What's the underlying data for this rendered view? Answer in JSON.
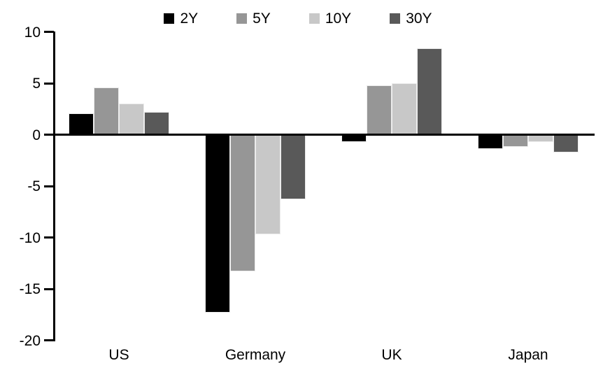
{
  "chart_data": {
    "type": "bar",
    "categories": [
      "US",
      "Germany",
      "UK",
      "Japan"
    ],
    "series": [
      {
        "name": "2Y",
        "color": "#000000",
        "values": [
          2.1,
          -17.3,
          -0.7,
          -1.4
        ]
      },
      {
        "name": "5Y",
        "color": "#969696",
        "values": [
          4.6,
          -13.3,
          4.8,
          -1.2
        ]
      },
      {
        "name": "10Y",
        "color": "#c8c8c8",
        "values": [
          3.0,
          -9.7,
          5.0,
          -0.7
        ]
      },
      {
        "name": "30Y",
        "color": "#595959",
        "values": [
          2.2,
          -6.3,
          8.4,
          -1.7
        ]
      }
    ],
    "ylim": [
      -20,
      10
    ],
    "yticks": [
      10,
      5,
      0,
      -5,
      -10,
      -15,
      -20
    ],
    "grid": false,
    "legend_position": "top",
    "axis_color": "#000000",
    "background_color": "#ffffff"
  }
}
